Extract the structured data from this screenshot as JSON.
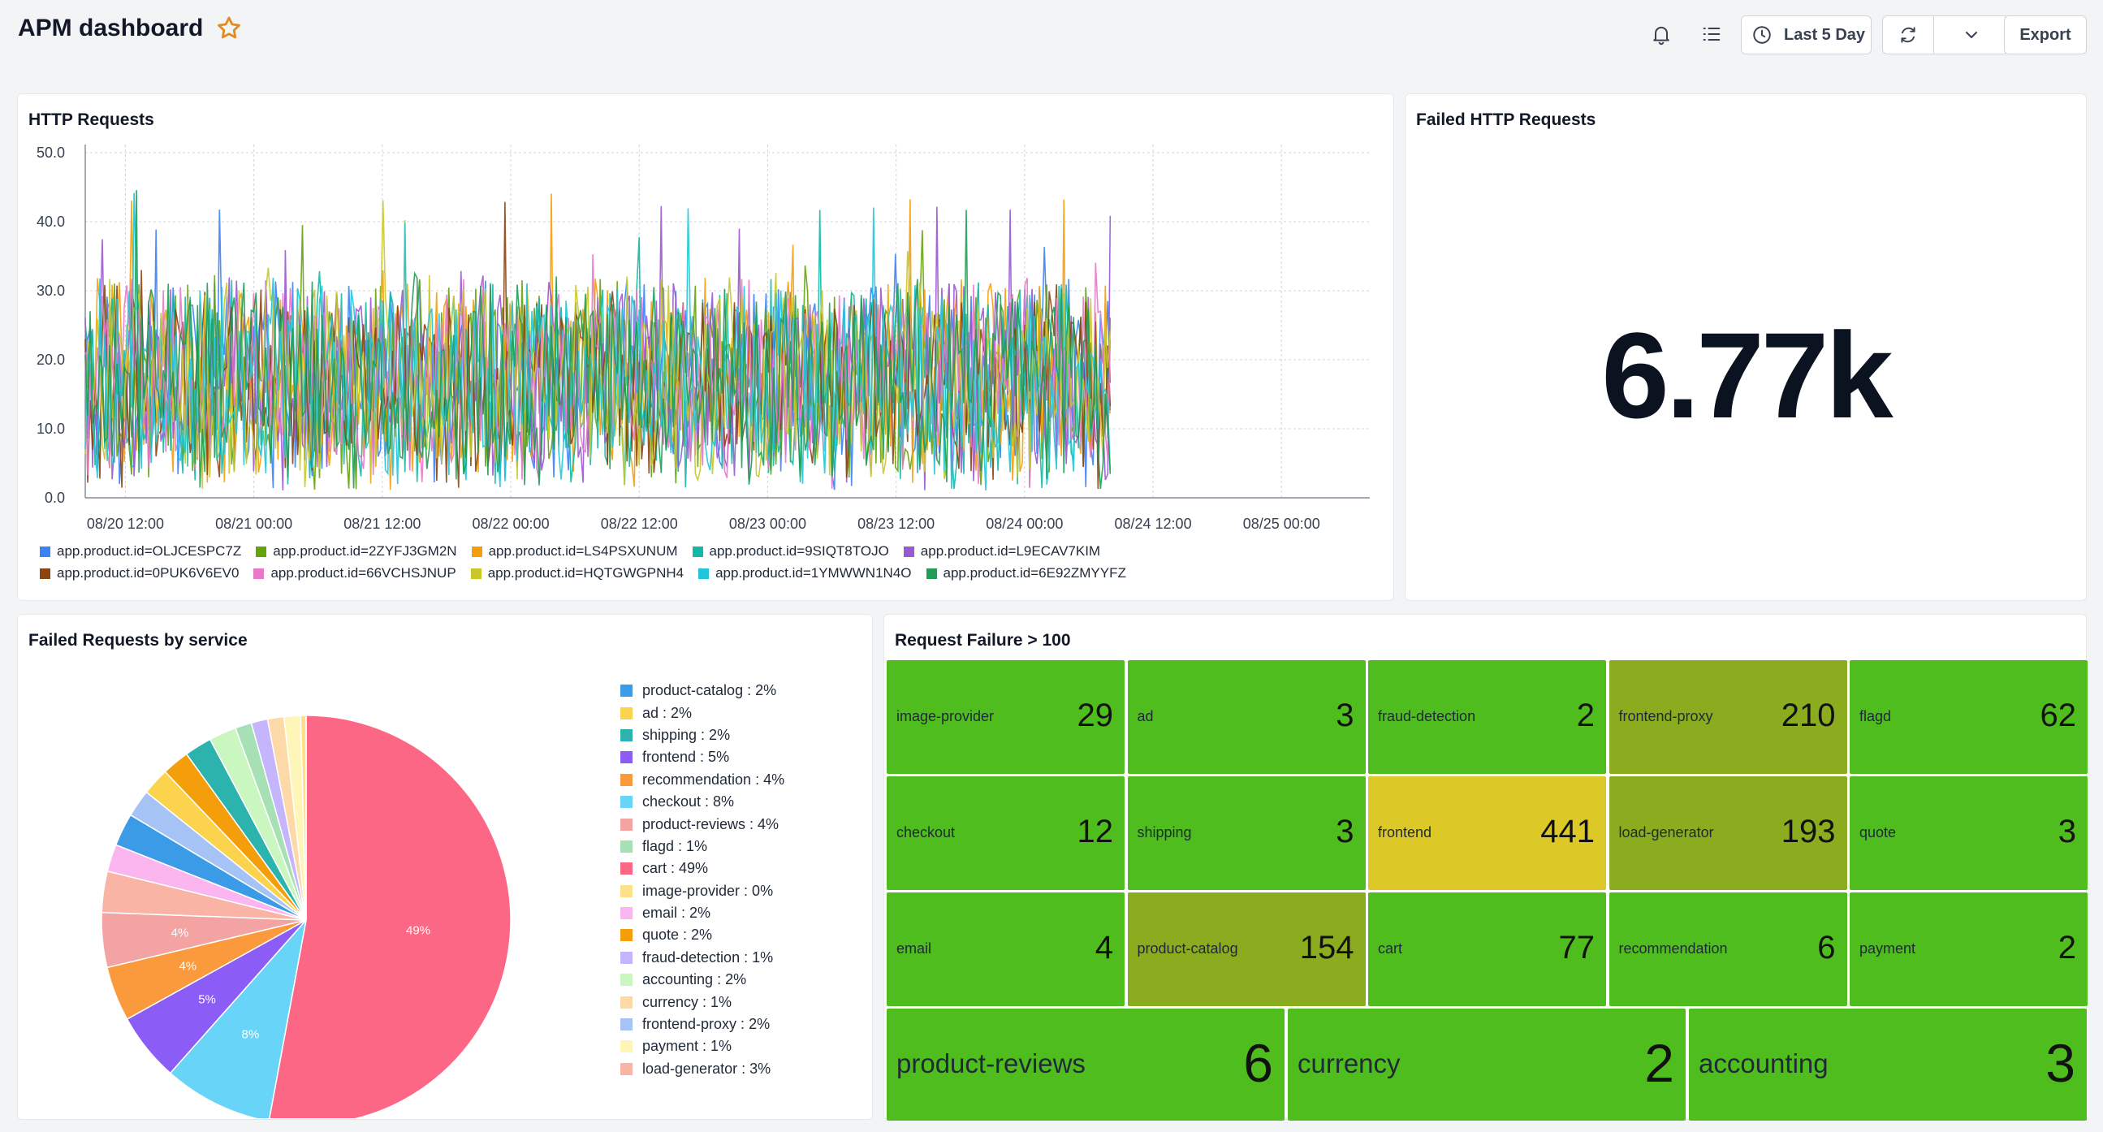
{
  "header": {
    "title": "APM dashboard",
    "time_range_label": "Last 5 Day",
    "export_label": "Export",
    "icons": [
      "star-icon",
      "bell-icon",
      "list-icon",
      "clock-icon",
      "refresh-icon",
      "chevron-down-icon"
    ]
  },
  "http_requests": {
    "title": "HTTP Requests",
    "chart_data": {
      "type": "line",
      "y_ticks": [
        "50.0",
        "40.0",
        "30.0",
        "20.0",
        "10.0",
        "0.0"
      ],
      "ylim": [
        0,
        50
      ],
      "x_ticks": [
        "08/20 12:00",
        "08/21 00:00",
        "08/21 12:00",
        "08/22 00:00",
        "08/22 12:00",
        "08/23 00:00",
        "08/23 12:00",
        "08/24 00:00",
        "08/24 12:00",
        "08/25 00:00"
      ],
      "x_range": [
        "08/20 08:15",
        "08/25 08:15"
      ],
      "data_end": "08/24 08:00",
      "grid": true,
      "legend_position": "bottom",
      "typical_range": [
        5,
        30
      ],
      "peak": 45,
      "series": [
        {
          "name": "app.product.id=OLJCESPC7Z",
          "color": "#3b82f6"
        },
        {
          "name": "app.product.id=2ZYFJ3GM2N",
          "color": "#65a30d"
        },
        {
          "name": "app.product.id=LS4PSXUNUM",
          "color": "#f59e0b"
        },
        {
          "name": "app.product.id=9SIQT8TOJO",
          "color": "#14b8a6"
        },
        {
          "name": "app.product.id=L9ECAV7KIM",
          "color": "#9b59d0"
        },
        {
          "name": "app.product.id=0PUK6V6EV0",
          "color": "#8b4513"
        },
        {
          "name": "app.product.id=66VCHSJNUP",
          "color": "#e879c9"
        },
        {
          "name": "app.product.id=HQTGWGPNH4",
          "color": "#c8c82a"
        },
        {
          "name": "app.product.id=1YMWWN1N4O",
          "color": "#22c5d8"
        },
        {
          "name": "app.product.id=6E92ZMYYFZ",
          "color": "#1f9d55"
        }
      ]
    }
  },
  "failed_http": {
    "title": "Failed HTTP Requests",
    "value": "6.77k"
  },
  "failed_by_service": {
    "title": "Failed Requests by service",
    "chart_data": {
      "type": "pie",
      "legend_position": "right",
      "slices": [
        {
          "name": "product-catalog",
          "label": "product-catalog : 2%",
          "value": 2.4,
          "color": "#3b9be6"
        },
        {
          "name": "ad",
          "label": "ad : 2%",
          "value": 2.0,
          "color": "#fcd34d"
        },
        {
          "name": "shipping",
          "label": "shipping : 2%",
          "value": 2.0,
          "color": "#2db3ad"
        },
        {
          "name": "frontend",
          "label": "frontend : 5%",
          "value": 5.0,
          "color": "#8b5cf6"
        },
        {
          "name": "recommendation",
          "label": "recommendation : 4%",
          "value": 4.0,
          "color": "#fb9a3c"
        },
        {
          "name": "checkout",
          "label": "checkout : 8%",
          "value": 8.0,
          "color": "#67d4f8"
        },
        {
          "name": "product-reviews",
          "label": "product-reviews : 4%",
          "value": 4.0,
          "color": "#f4a3a3"
        },
        {
          "name": "flagd",
          "label": "flagd : 1%",
          "value": 1.2,
          "color": "#a7e0b5"
        },
        {
          "name": "cart",
          "label": "cart : 49%",
          "value": 49.0,
          "color": "#fb6784"
        },
        {
          "name": "image-provider",
          "label": "image-provider : 0%",
          "value": 0.4,
          "color": "#fde08a"
        },
        {
          "name": "email",
          "label": "email : 2%",
          "value": 2.0,
          "color": "#fbb6f0"
        },
        {
          "name": "quote",
          "label": "quote : 2%",
          "value": 2.0,
          "color": "#f59e0b"
        },
        {
          "name": "fraud-detection",
          "label": "fraud-detection : 1%",
          "value": 1.2,
          "color": "#c4b5fd"
        },
        {
          "name": "accounting",
          "label": "accounting : 2%",
          "value": 2.0,
          "color": "#c9f7bf"
        },
        {
          "name": "currency",
          "label": "currency : 1%",
          "value": 1.2,
          "color": "#fdd9a8"
        },
        {
          "name": "frontend-proxy",
          "label": "frontend-proxy : 2%",
          "value": 2.0,
          "color": "#a5c4f5"
        },
        {
          "name": "payment",
          "label": "payment : 1%",
          "value": 1.2,
          "color": "#fef6b8"
        },
        {
          "name": "load-generator",
          "label": "load-generator : 3%",
          "value": 3.0,
          "color": "#f9b4a6"
        }
      ],
      "slice_labels": [
        "49%",
        "8%",
        "5%",
        "4%",
        "4%"
      ]
    }
  },
  "request_failure": {
    "title": "Request Failure > 100",
    "tiles": [
      {
        "name": "image-provider",
        "value": "29",
        "color": "#4fbd1e"
      },
      {
        "name": "ad",
        "value": "3",
        "color": "#4fbd1e"
      },
      {
        "name": "fraud-detection",
        "value": "2",
        "color": "#4fbd1e"
      },
      {
        "name": "frontend-proxy",
        "value": "210",
        "color": "#8aac1e"
      },
      {
        "name": "flagd",
        "value": "62",
        "color": "#4fbd1e"
      },
      {
        "name": "checkout",
        "value": "12",
        "color": "#4fbd1e"
      },
      {
        "name": "shipping",
        "value": "3",
        "color": "#4fbd1e"
      },
      {
        "name": "frontend",
        "value": "441",
        "color": "#dcc827"
      },
      {
        "name": "load-generator",
        "value": "193",
        "color": "#8aac1e"
      },
      {
        "name": "quote",
        "value": "3",
        "color": "#4fbd1e"
      },
      {
        "name": "email",
        "value": "4",
        "color": "#4fbd1e"
      },
      {
        "name": "product-catalog",
        "value": "154",
        "color": "#8aac1e"
      },
      {
        "name": "cart",
        "value": "77",
        "color": "#4fbd1e"
      },
      {
        "name": "recommendation",
        "value": "6",
        "color": "#4fbd1e"
      },
      {
        "name": "payment",
        "value": "2",
        "color": "#4fbd1e"
      },
      {
        "name": "product-reviews",
        "value": "6",
        "color": "#4fbd1e"
      },
      {
        "name": "currency",
        "value": "2",
        "color": "#4fbd1e"
      },
      {
        "name": "accounting",
        "value": "3",
        "color": "#4fbd1e"
      }
    ]
  }
}
